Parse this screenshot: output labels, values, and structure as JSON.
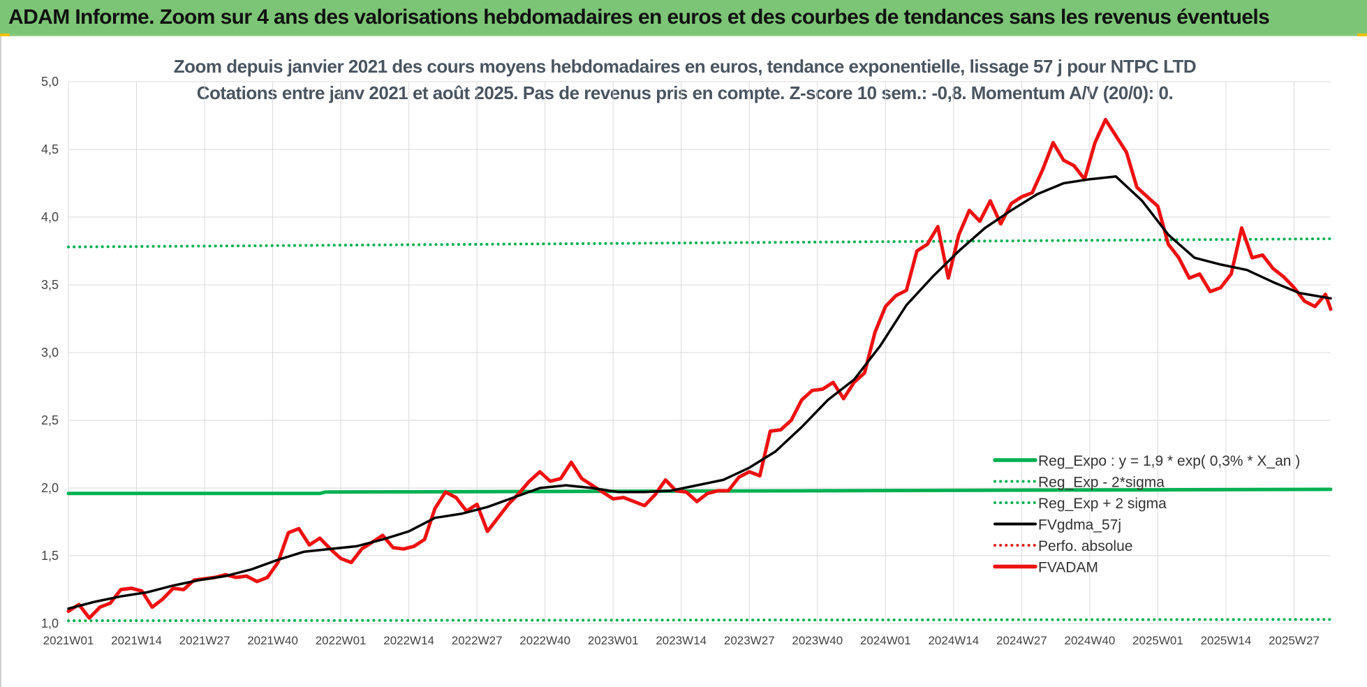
{
  "header": {
    "title": "ADAM Informe. Zoom sur 4 ans des valorisations hebdomadaires en euros et des courbes de tendances sans les revenus éventuels"
  },
  "chart_data": {
    "type": "line",
    "title": "Zoom depuis janvier 2021 des cours moyens hebdomadaires en euros, tendance exponentielle, lissage 57 j pour NTPC LTD",
    "subtitle": "Cotations entre janv 2021 et août 2025.  Pas de revenus pris en compte. Z-score 10 sem.: -0,8. Momentum A/V (20/0): 0.",
    "ylim": [
      1.0,
      5.0
    ],
    "yticks": [
      "1,0",
      "1,5",
      "2,0",
      "2,5",
      "3,0",
      "3,5",
      "4,0",
      "4,5",
      "5,0"
    ],
    "xticks": [
      "2021W01",
      "2021W14",
      "2021W27",
      "2021W40",
      "2022W01",
      "2022W14",
      "2022W27",
      "2022W40",
      "2023W01",
      "2023W14",
      "2023W27",
      "2023W40",
      "2024W01",
      "2024W14",
      "2024W27",
      "2024W40",
      "2025W01",
      "2025W14",
      "2025W27"
    ],
    "x_range_weeks": [
      0,
      241
    ],
    "grid": true,
    "legend_position": "bottom-right",
    "series": [
      {
        "name": "Reg_Expo : y = 1,9 * exp( 0,3% *  X_an )",
        "color": "#00b050",
        "style": "solid",
        "x": [
          0,
          48,
          49,
          241
        ],
        "values": [
          1.96,
          1.96,
          1.97,
          1.99
        ]
      },
      {
        "name": "Reg_Exp - 2*sigma",
        "color": "#00b050",
        "style": "dotted",
        "x": [
          0,
          241
        ],
        "values": [
          1.02,
          1.03
        ]
      },
      {
        "name": "Reg_Exp + 2 sigma",
        "color": "#00b050",
        "style": "dotted",
        "x": [
          0,
          241
        ],
        "values": [
          3.78,
          3.84
        ]
      },
      {
        "name": "FVgdma_57j",
        "color": "#000000",
        "style": "solid",
        "x": [
          0,
          5,
          10,
          15,
          20,
          25,
          30,
          35,
          40,
          45,
          50,
          55,
          60,
          65,
          70,
          75,
          80,
          85,
          90,
          95,
          100,
          105,
          110,
          115,
          120,
          125,
          130,
          135,
          140,
          145,
          150,
          155,
          160,
          165,
          170,
          175,
          180,
          185,
          190,
          195,
          200,
          205,
          210,
          215,
          220,
          225,
          230,
          235,
          241
        ],
        "values": [
          1.11,
          1.16,
          1.2,
          1.23,
          1.28,
          1.32,
          1.35,
          1.4,
          1.47,
          1.53,
          1.55,
          1.57,
          1.62,
          1.68,
          1.78,
          1.81,
          1.86,
          1.93,
          2.0,
          2.02,
          2.0,
          1.97,
          1.97,
          1.98,
          2.02,
          2.06,
          2.15,
          2.27,
          2.45,
          2.65,
          2.8,
          3.05,
          3.35,
          3.56,
          3.75,
          3.92,
          4.05,
          4.17,
          4.25,
          4.28,
          4.3,
          4.12,
          3.87,
          3.7,
          3.65,
          3.61,
          3.52,
          3.44,
          3.4
        ]
      },
      {
        "name": "Perfo. absolue",
        "color": "#e0201b",
        "style": "dotted",
        "x": [],
        "values": []
      },
      {
        "name": "FVADAM",
        "color": "#ee1111",
        "style": "solid",
        "x": [
          0,
          2,
          4,
          6,
          8,
          10,
          12,
          14,
          16,
          18,
          20,
          22,
          24,
          26,
          28,
          30,
          32,
          34,
          36,
          38,
          40,
          42,
          44,
          46,
          48,
          50,
          52,
          54,
          56,
          58,
          60,
          62,
          64,
          66,
          68,
          70,
          72,
          74,
          76,
          78,
          80,
          82,
          84,
          86,
          88,
          90,
          92,
          94,
          96,
          98,
          100,
          102,
          104,
          106,
          108,
          110,
          112,
          114,
          116,
          118,
          120,
          122,
          124,
          126,
          128,
          130,
          132,
          134,
          136,
          138,
          140,
          142,
          144,
          146,
          148,
          150,
          152,
          154,
          156,
          158,
          160,
          162,
          164,
          166,
          168,
          170,
          172,
          174,
          176,
          178,
          180,
          182,
          184,
          186,
          188,
          190,
          192,
          194,
          196,
          198,
          200,
          202,
          204,
          206,
          208,
          210,
          212,
          214,
          216,
          218,
          220,
          222,
          224,
          226,
          228,
          230,
          232,
          234,
          236,
          238,
          240,
          241
        ],
        "values": [
          1.09,
          1.14,
          1.04,
          1.12,
          1.15,
          1.25,
          1.26,
          1.24,
          1.12,
          1.18,
          1.26,
          1.25,
          1.32,
          1.33,
          1.34,
          1.36,
          1.34,
          1.35,
          1.31,
          1.34,
          1.45,
          1.67,
          1.7,
          1.58,
          1.63,
          1.55,
          1.48,
          1.45,
          1.55,
          1.6,
          1.65,
          1.56,
          1.55,
          1.57,
          1.62,
          1.85,
          1.97,
          1.93,
          1.83,
          1.88,
          1.68,
          1.78,
          1.88,
          1.96,
          2.05,
          2.12,
          2.05,
          2.07,
          2.19,
          2.07,
          2.02,
          1.97,
          1.92,
          1.93,
          1.9,
          1.87,
          1.95,
          2.06,
          1.98,
          1.97,
          1.9,
          1.96,
          1.98,
          1.98,
          2.08,
          2.12,
          2.09,
          2.42,
          2.43,
          2.5,
          2.65,
          2.72,
          2.73,
          2.78,
          2.66,
          2.78,
          2.85,
          3.15,
          3.34,
          3.42,
          3.46,
          3.75,
          3.8,
          3.93,
          3.55,
          3.87,
          4.05,
          3.97,
          4.12,
          3.95,
          4.1,
          4.15,
          4.18,
          4.35,
          4.55,
          4.42,
          4.38,
          4.28,
          4.55,
          4.72,
          4.6,
          4.48,
          4.22,
          4.15,
          4.08,
          3.8,
          3.7,
          3.55,
          3.58,
          3.45,
          3.48,
          3.58,
          3.92,
          3.7,
          3.72,
          3.62,
          3.56,
          3.48,
          3.38,
          3.34,
          3.43,
          3.32
        ]
      }
    ]
  }
}
